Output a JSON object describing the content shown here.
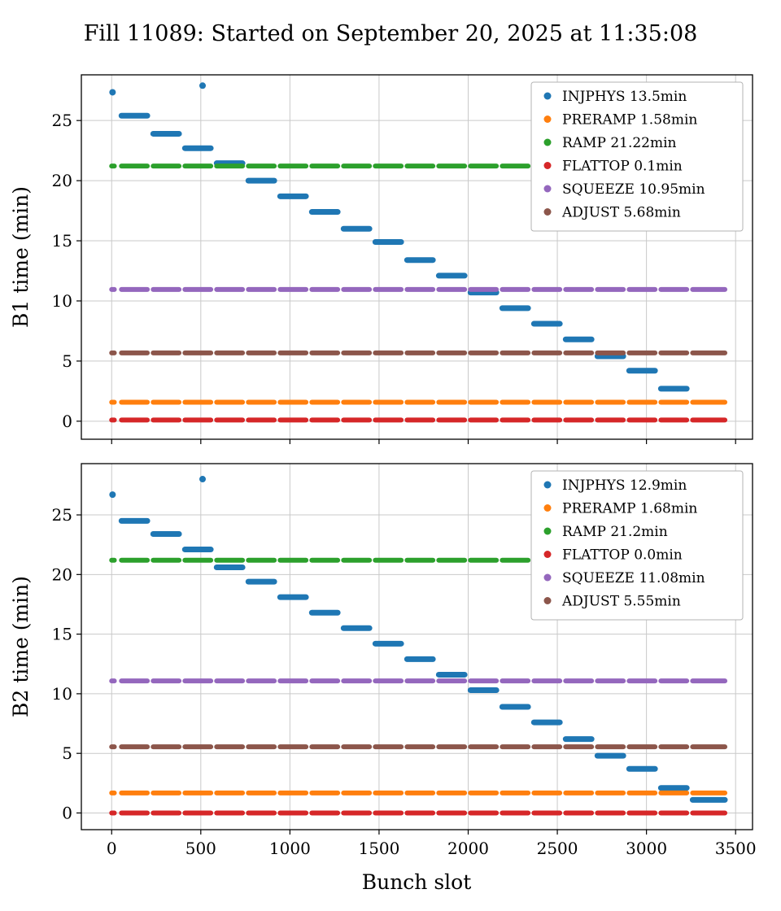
{
  "title": "Fill 11089: Started on September 20, 2025 at 11:35:08",
  "xlabel": "Bunch slot",
  "trains": [
    [
      0,
      15
    ],
    [
      55,
      200
    ],
    [
      233,
      378
    ],
    [
      411,
      556
    ],
    [
      589,
      734
    ],
    [
      767,
      912
    ],
    [
      945,
      1090
    ],
    [
      1123,
      1268
    ],
    [
      1301,
      1446
    ],
    [
      1479,
      1624
    ],
    [
      1657,
      1802
    ],
    [
      1835,
      1980
    ],
    [
      2013,
      2158
    ],
    [
      2191,
      2336
    ],
    [
      2369,
      2514
    ],
    [
      2547,
      2692
    ],
    [
      2725,
      2870
    ],
    [
      2903,
      3048
    ],
    [
      3081,
      3226
    ],
    [
      3259,
      3440
    ]
  ],
  "chart_data": [
    {
      "type": "scatter",
      "beam": "B1",
      "ylabel": "B1 time (min)",
      "xlabel": "",
      "xlim": [
        -170,
        3595
      ],
      "ylim": [
        -1.5,
        28.8
      ],
      "xticks": [
        0,
        500,
        1000,
        1500,
        2000,
        2500,
        3000,
        3500
      ],
      "yticks": [
        0,
        5,
        10,
        15,
        20,
        25
      ],
      "grid": true,
      "legend_position": "upper right",
      "legend": [
        {
          "label": "INJPHYS 13.5min",
          "color": "#1f77b4"
        },
        {
          "label": "PRERAMP 1.58min",
          "color": "#ff7f0e"
        },
        {
          "label": "RAMP 21.22min",
          "color": "#2ca02c"
        },
        {
          "label": "FLATTOP 0.1min",
          "color": "#d62728"
        },
        {
          "label": "SQUEEZE 10.95min",
          "color": "#9467bd"
        },
        {
          "label": "ADJUST 5.68min",
          "color": "#8c564b"
        }
      ],
      "injphys": {
        "color": "#1f77b4",
        "first_dot": {
          "x": 5,
          "y": 27.35
        },
        "outlier": {
          "x": 510,
          "y": 27.9
        },
        "step_y": [
          25.4,
          23.9,
          22.7,
          21.45,
          20.0,
          18.7,
          17.4,
          16.0,
          14.9,
          13.4,
          12.1,
          10.7,
          9.4,
          8.1,
          6.8,
          5.4,
          4.2,
          2.7
        ]
      },
      "horizontals": [
        {
          "name": "PRERAMP",
          "y": 1.58,
          "color": "#ff7f0e"
        },
        {
          "name": "RAMP",
          "y": 21.22,
          "color": "#2ca02c"
        },
        {
          "name": "FLATTOP",
          "y": 0.1,
          "color": "#d62728"
        },
        {
          "name": "SQUEEZE",
          "y": 10.95,
          "color": "#9467bd"
        },
        {
          "name": "ADJUST",
          "y": 5.68,
          "color": "#8c564b"
        }
      ]
    },
    {
      "type": "scatter",
      "beam": "B2",
      "ylabel": "B2 time (min)",
      "xlabel": "Bunch slot",
      "xlim": [
        -170,
        3595
      ],
      "ylim": [
        -1.4,
        29.3
      ],
      "xticks": [
        0,
        500,
        1000,
        1500,
        2000,
        2500,
        3000,
        3500
      ],
      "yticks": [
        0,
        5,
        10,
        15,
        20,
        25
      ],
      "grid": true,
      "legend_position": "upper right",
      "legend": [
        {
          "label": "INJPHYS 12.9min",
          "color": "#1f77b4"
        },
        {
          "label": "PRERAMP 1.68min",
          "color": "#ff7f0e"
        },
        {
          "label": "RAMP 21.2min",
          "color": "#2ca02c"
        },
        {
          "label": "FLATTOP 0.0min",
          "color": "#d62728"
        },
        {
          "label": "SQUEEZE 11.08min",
          "color": "#9467bd"
        },
        {
          "label": "ADJUST 5.55min",
          "color": "#8c564b"
        }
      ],
      "injphys": {
        "color": "#1f77b4",
        "first_dot": {
          "x": 5,
          "y": 26.7
        },
        "outlier": {
          "x": 510,
          "y": 28.0
        },
        "step_y": [
          24.5,
          23.4,
          22.1,
          20.6,
          19.4,
          18.1,
          16.8,
          15.5,
          14.2,
          12.9,
          11.6,
          10.3,
          8.9,
          7.6,
          6.2,
          4.8,
          3.7,
          2.1,
          1.1
        ]
      },
      "horizontals": [
        {
          "name": "PRERAMP",
          "y": 1.68,
          "color": "#ff7f0e"
        },
        {
          "name": "RAMP",
          "y": 21.2,
          "color": "#2ca02c"
        },
        {
          "name": "FLATTOP",
          "y": 0.0,
          "color": "#d62728"
        },
        {
          "name": "SQUEEZE",
          "y": 11.08,
          "color": "#9467bd"
        },
        {
          "name": "ADJUST",
          "y": 5.55,
          "color": "#8c564b"
        }
      ]
    }
  ]
}
